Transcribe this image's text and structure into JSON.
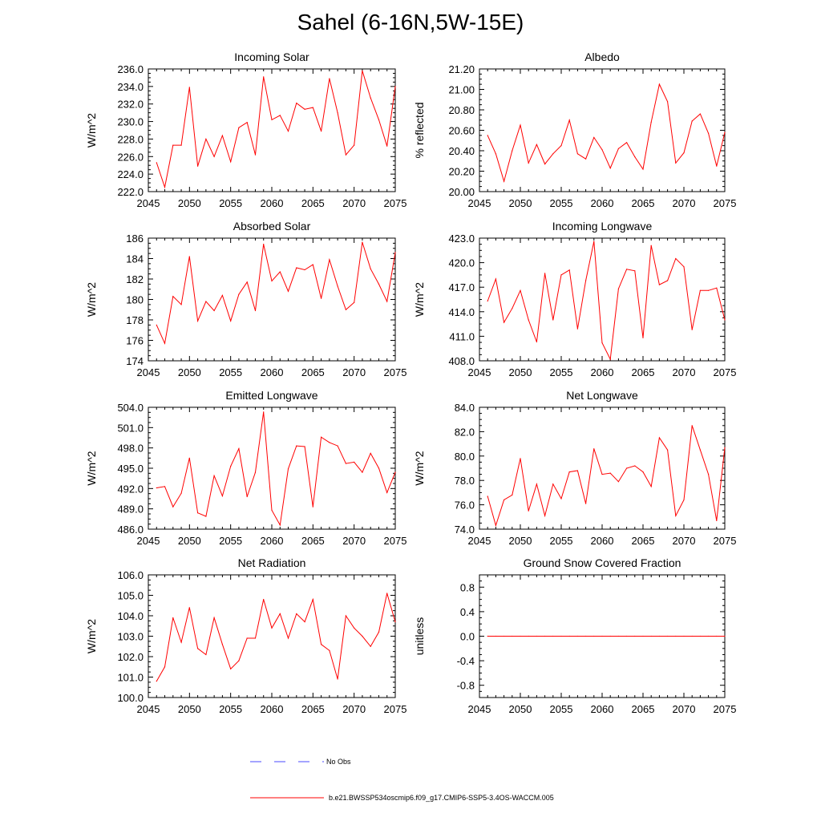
{
  "page": {
    "title": "Sahel (6-16N,5W-15E)"
  },
  "colors": {
    "model_line": "#ff0000",
    "obs_line": "#4a4aff",
    "axis": "#000000"
  },
  "legend": {
    "obs_label": "No Obs",
    "model_label": "b.e21.BWSSP534oscmip6.f09_g17.CMIP6-SSP5-3.4OS-WACCM.005"
  },
  "chart_data": [
    {
      "type": "line",
      "title": "Incoming Solar",
      "ylabel": "W/m^2",
      "xlim": [
        2045,
        2075
      ],
      "ylim": [
        222,
        236
      ],
      "yticks": [
        222,
        224,
        226,
        228,
        230,
        232,
        234,
        236
      ],
      "yticklabels": [
        "222.0",
        "224.0",
        "226.0",
        "228.0",
        "230.0",
        "232.0",
        "234.0",
        "236.0"
      ],
      "xticks": [
        2045,
        2050,
        2055,
        2060,
        2065,
        2070,
        2075
      ],
      "xticklabels": [
        "2045",
        "2050",
        "2055",
        "2060",
        "2065",
        "2070",
        "2075"
      ],
      "x": [
        2046,
        2047,
        2048,
        2049,
        2050,
        2051,
        2052,
        2053,
        2054,
        2055,
        2056,
        2057,
        2058,
        2059,
        2060,
        2061,
        2062,
        2063,
        2064,
        2065,
        2066,
        2067,
        2068,
        2069,
        2070,
        2071,
        2072,
        2073,
        2074,
        2075
      ],
      "series": [
        {
          "name": "b.e21.BWSSP534oscmip6.f09_g17.CMIP6-SSP5-3.4OS-WACCM.005",
          "values": [
            225.3,
            222.5,
            227.3,
            227.3,
            233.9,
            224.9,
            228.0,
            226.0,
            228.4,
            225.4,
            229.3,
            229.9,
            226.2,
            235.1,
            230.2,
            230.7,
            228.9,
            232.1,
            231.4,
            231.6,
            228.9,
            234.9,
            231.0,
            226.2,
            227.3,
            235.8,
            232.7,
            230.2,
            227.2,
            234.0
          ]
        }
      ]
    },
    {
      "type": "line",
      "title": "Albedo",
      "ylabel": "% reflected",
      "xlim": [
        2045,
        2075
      ],
      "ylim": [
        20.0,
        21.2
      ],
      "yticks": [
        20.0,
        20.2,
        20.4,
        20.6,
        20.8,
        21.0,
        21.2
      ],
      "yticklabels": [
        "20.00",
        "20.20",
        "20.40",
        "20.60",
        "20.80",
        "21.00",
        "21.20"
      ],
      "xticks": [
        2045,
        2050,
        2055,
        2060,
        2065,
        2070,
        2075
      ],
      "xticklabels": [
        "2045",
        "2050",
        "2055",
        "2060",
        "2065",
        "2070",
        "2075"
      ],
      "x": [
        2046,
        2047,
        2048,
        2049,
        2050,
        2051,
        2052,
        2053,
        2054,
        2055,
        2056,
        2057,
        2058,
        2059,
        2060,
        2061,
        2062,
        2063,
        2064,
        2065,
        2066,
        2067,
        2068,
        2069,
        2070,
        2071,
        2072,
        2073,
        2074,
        2075
      ],
      "series": [
        {
          "name": "b.e21.BWSSP534oscmip6.f09_g17.CMIP6-SSP5-3.4OS-WACCM.005",
          "values": [
            20.55,
            20.37,
            20.1,
            20.4,
            20.65,
            20.28,
            20.46,
            20.27,
            20.37,
            20.45,
            20.7,
            20.37,
            20.32,
            20.53,
            20.41,
            20.23,
            20.42,
            20.48,
            20.34,
            20.22,
            20.68,
            21.05,
            20.88,
            20.28,
            20.38,
            20.69,
            20.76,
            20.57,
            20.25,
            20.58
          ]
        }
      ]
    },
    {
      "type": "line",
      "title": "Absorbed Solar",
      "ylabel": "W/m^2",
      "xlim": [
        2045,
        2075
      ],
      "ylim": [
        174,
        186
      ],
      "yticks": [
        174,
        176,
        178,
        180,
        182,
        184,
        186
      ],
      "yticklabels": [
        "174",
        "176",
        "178",
        "180",
        "182",
        "184",
        "186"
      ],
      "xticks": [
        2045,
        2050,
        2055,
        2060,
        2065,
        2070,
        2075
      ],
      "xticklabels": [
        "2045",
        "2050",
        "2055",
        "2060",
        "2065",
        "2070",
        "2075"
      ],
      "x": [
        2046,
        2047,
        2048,
        2049,
        2050,
        2051,
        2052,
        2053,
        2054,
        2055,
        2056,
        2057,
        2058,
        2059,
        2060,
        2061,
        2062,
        2063,
        2064,
        2065,
        2066,
        2067,
        2068,
        2069,
        2070,
        2071,
        2072,
        2073,
        2074,
        2075
      ],
      "series": [
        {
          "name": "b.e21.BWSSP534oscmip6.f09_g17.CMIP6-SSP5-3.4OS-WACCM.005",
          "values": [
            177.5,
            175.7,
            180.3,
            179.5,
            184.2,
            177.9,
            179.8,
            178.9,
            180.4,
            177.9,
            180.5,
            181.7,
            178.9,
            185.4,
            181.8,
            182.7,
            180.8,
            183.1,
            182.9,
            183.4,
            180.1,
            183.9,
            181.3,
            179.0,
            179.7,
            185.6,
            183.0,
            181.5,
            179.8,
            184.6
          ]
        }
      ]
    },
    {
      "type": "line",
      "title": "Incoming Longwave",
      "ylabel": "W/m^2",
      "xlim": [
        2045,
        2075
      ],
      "ylim": [
        408,
        423
      ],
      "yticks": [
        408,
        411,
        414,
        417,
        420,
        423
      ],
      "yticklabels": [
        "408.0",
        "411.0",
        "414.0",
        "417.0",
        "420.0",
        "423.0"
      ],
      "xticks": [
        2045,
        2050,
        2055,
        2060,
        2065,
        2070,
        2075
      ],
      "xticklabels": [
        "2045",
        "2050",
        "2055",
        "2060",
        "2065",
        "2070",
        "2075"
      ],
      "x": [
        2046,
        2047,
        2048,
        2049,
        2050,
        2051,
        2052,
        2053,
        2054,
        2055,
        2056,
        2057,
        2058,
        2059,
        2060,
        2061,
        2062,
        2063,
        2064,
        2065,
        2066,
        2067,
        2068,
        2069,
        2070,
        2071,
        2072,
        2073,
        2074,
        2075
      ],
      "series": [
        {
          "name": "b.e21.BWSSP534oscmip6.f09_g17.CMIP6-SSP5-3.4OS-WACCM.005",
          "values": [
            415.3,
            418.0,
            412.7,
            414.4,
            416.6,
            413.0,
            410.3,
            418.7,
            413.0,
            418.5,
            419.1,
            411.9,
            417.8,
            422.6,
            410.2,
            408.2,
            416.8,
            419.2,
            419.0,
            410.8,
            422.1,
            417.3,
            417.8,
            420.5,
            419.5,
            411.8,
            416.6,
            416.6,
            416.9,
            413.0
          ]
        }
      ]
    },
    {
      "type": "line",
      "title": "Emitted Longwave",
      "ylabel": "W/m^2",
      "xlim": [
        2045,
        2075
      ],
      "ylim": [
        486,
        504
      ],
      "yticks": [
        486,
        489,
        492,
        495,
        498,
        501,
        504
      ],
      "yticklabels": [
        "486.0",
        "489.0",
        "492.0",
        "495.0",
        "498.0",
        "501.0",
        "504.0"
      ],
      "xticks": [
        2045,
        2050,
        2055,
        2060,
        2065,
        2070,
        2075
      ],
      "xticklabels": [
        "2045",
        "2050",
        "2055",
        "2060",
        "2065",
        "2070",
        "2075"
      ],
      "x": [
        2046,
        2047,
        2048,
        2049,
        2050,
        2051,
        2052,
        2053,
        2054,
        2055,
        2056,
        2057,
        2058,
        2059,
        2060,
        2061,
        2062,
        2063,
        2064,
        2065,
        2066,
        2067,
        2068,
        2069,
        2070,
        2071,
        2072,
        2073,
        2074,
        2075
      ],
      "series": [
        {
          "name": "b.e21.BWSSP534oscmip6.f09_g17.CMIP6-SSP5-3.4OS-WACCM.005",
          "values": [
            492.1,
            492.3,
            489.3,
            491.3,
            496.5,
            488.4,
            487.9,
            493.9,
            490.9,
            495.3,
            497.9,
            490.8,
            494.4,
            503.3,
            488.8,
            486.6,
            494.9,
            498.3,
            498.2,
            489.3,
            499.6,
            498.8,
            498.3,
            495.7,
            495.9,
            494.4,
            497.2,
            495.0,
            491.4,
            494.4
          ]
        }
      ]
    },
    {
      "type": "line",
      "title": "Net Longwave",
      "ylabel": "W/m^2",
      "xlim": [
        2045,
        2075
      ],
      "ylim": [
        74,
        84
      ],
      "yticks": [
        74,
        76,
        78,
        80,
        82,
        84
      ],
      "yticklabels": [
        "74.0",
        "76.0",
        "78.0",
        "80.0",
        "82.0",
        "84.0"
      ],
      "xticks": [
        2045,
        2050,
        2055,
        2060,
        2065,
        2070,
        2075
      ],
      "xticklabels": [
        "2045",
        "2050",
        "2055",
        "2060",
        "2065",
        "2070",
        "2075"
      ],
      "x": [
        2046,
        2047,
        2048,
        2049,
        2050,
        2051,
        2052,
        2053,
        2054,
        2055,
        2056,
        2057,
        2058,
        2059,
        2060,
        2061,
        2062,
        2063,
        2064,
        2065,
        2066,
        2067,
        2068,
        2069,
        2070,
        2071,
        2072,
        2073,
        2074,
        2075
      ],
      "series": [
        {
          "name": "b.e21.BWSSP534oscmip6.f09_g17.CMIP6-SSP5-3.4OS-WACCM.005",
          "values": [
            76.7,
            74.3,
            76.4,
            76.8,
            79.8,
            75.5,
            77.7,
            75.1,
            77.7,
            76.5,
            78.7,
            78.8,
            76.1,
            80.6,
            78.5,
            78.6,
            77.9,
            79.0,
            79.2,
            78.7,
            77.5,
            81.5,
            80.5,
            75.1,
            76.4,
            82.5,
            80.5,
            78.5,
            74.7,
            80.7
          ]
        }
      ]
    },
    {
      "type": "line",
      "title": "Net Radiation",
      "ylabel": "W/m^2",
      "xlim": [
        2045,
        2075
      ],
      "ylim": [
        100,
        106
      ],
      "yticks": [
        100,
        101,
        102,
        103,
        104,
        105,
        106
      ],
      "yticklabels": [
        "100.0",
        "101.0",
        "102.0",
        "103.0",
        "104.0",
        "105.0",
        "106.0"
      ],
      "xticks": [
        2045,
        2050,
        2055,
        2060,
        2065,
        2070,
        2075
      ],
      "xticklabels": [
        "2045",
        "2050",
        "2055",
        "2060",
        "2065",
        "2070",
        "2075"
      ],
      "x": [
        2046,
        2047,
        2048,
        2049,
        2050,
        2051,
        2052,
        2053,
        2054,
        2055,
        2056,
        2057,
        2058,
        2059,
        2060,
        2061,
        2062,
        2063,
        2064,
        2065,
        2066,
        2067,
        2068,
        2069,
        2070,
        2071,
        2072,
        2073,
        2074,
        2075
      ],
      "series": [
        {
          "name": "b.e21.BWSSP534oscmip6.f09_g17.CMIP6-SSP5-3.4OS-WACCM.005",
          "values": [
            100.8,
            101.5,
            103.9,
            102.7,
            104.4,
            102.4,
            102.1,
            103.9,
            102.6,
            101.4,
            101.8,
            102.9,
            102.9,
            104.8,
            103.4,
            104.1,
            102.9,
            104.1,
            103.7,
            104.8,
            102.6,
            102.3,
            100.9,
            104.0,
            103.4,
            103.0,
            102.5,
            103.2,
            105.1,
            103.7
          ]
        }
      ]
    },
    {
      "type": "line",
      "title": "Ground Snow Covered Fraction",
      "ylabel": "unitless",
      "xlim": [
        2045,
        2075
      ],
      "ylim": [
        -1.0,
        1.0
      ],
      "yticks": [
        -0.8,
        -0.4,
        0.0,
        0.4,
        0.8
      ],
      "yticklabels": [
        "-0.8",
        "-0.4",
        "0.0",
        "0.4",
        "0.8"
      ],
      "xticks": [
        2045,
        2050,
        2055,
        2060,
        2065,
        2070,
        2075
      ],
      "xticklabels": [
        "2045",
        "2050",
        "2055",
        "2060",
        "2065",
        "2070",
        "2075"
      ],
      "x": [
        2046,
        2047,
        2048,
        2049,
        2050,
        2051,
        2052,
        2053,
        2054,
        2055,
        2056,
        2057,
        2058,
        2059,
        2060,
        2061,
        2062,
        2063,
        2064,
        2065,
        2066,
        2067,
        2068,
        2069,
        2070,
        2071,
        2072,
        2073,
        2074,
        2075
      ],
      "series": [
        {
          "name": "b.e21.BWSSP534oscmip6.f09_g17.CMIP6-SSP5-3.4OS-WACCM.005",
          "values": [
            0,
            0,
            0,
            0,
            0,
            0,
            0,
            0,
            0,
            0,
            0,
            0,
            0,
            0,
            0,
            0,
            0,
            0,
            0,
            0,
            0,
            0,
            0,
            0,
            0,
            0,
            0,
            0,
            0,
            0
          ]
        }
      ]
    }
  ]
}
